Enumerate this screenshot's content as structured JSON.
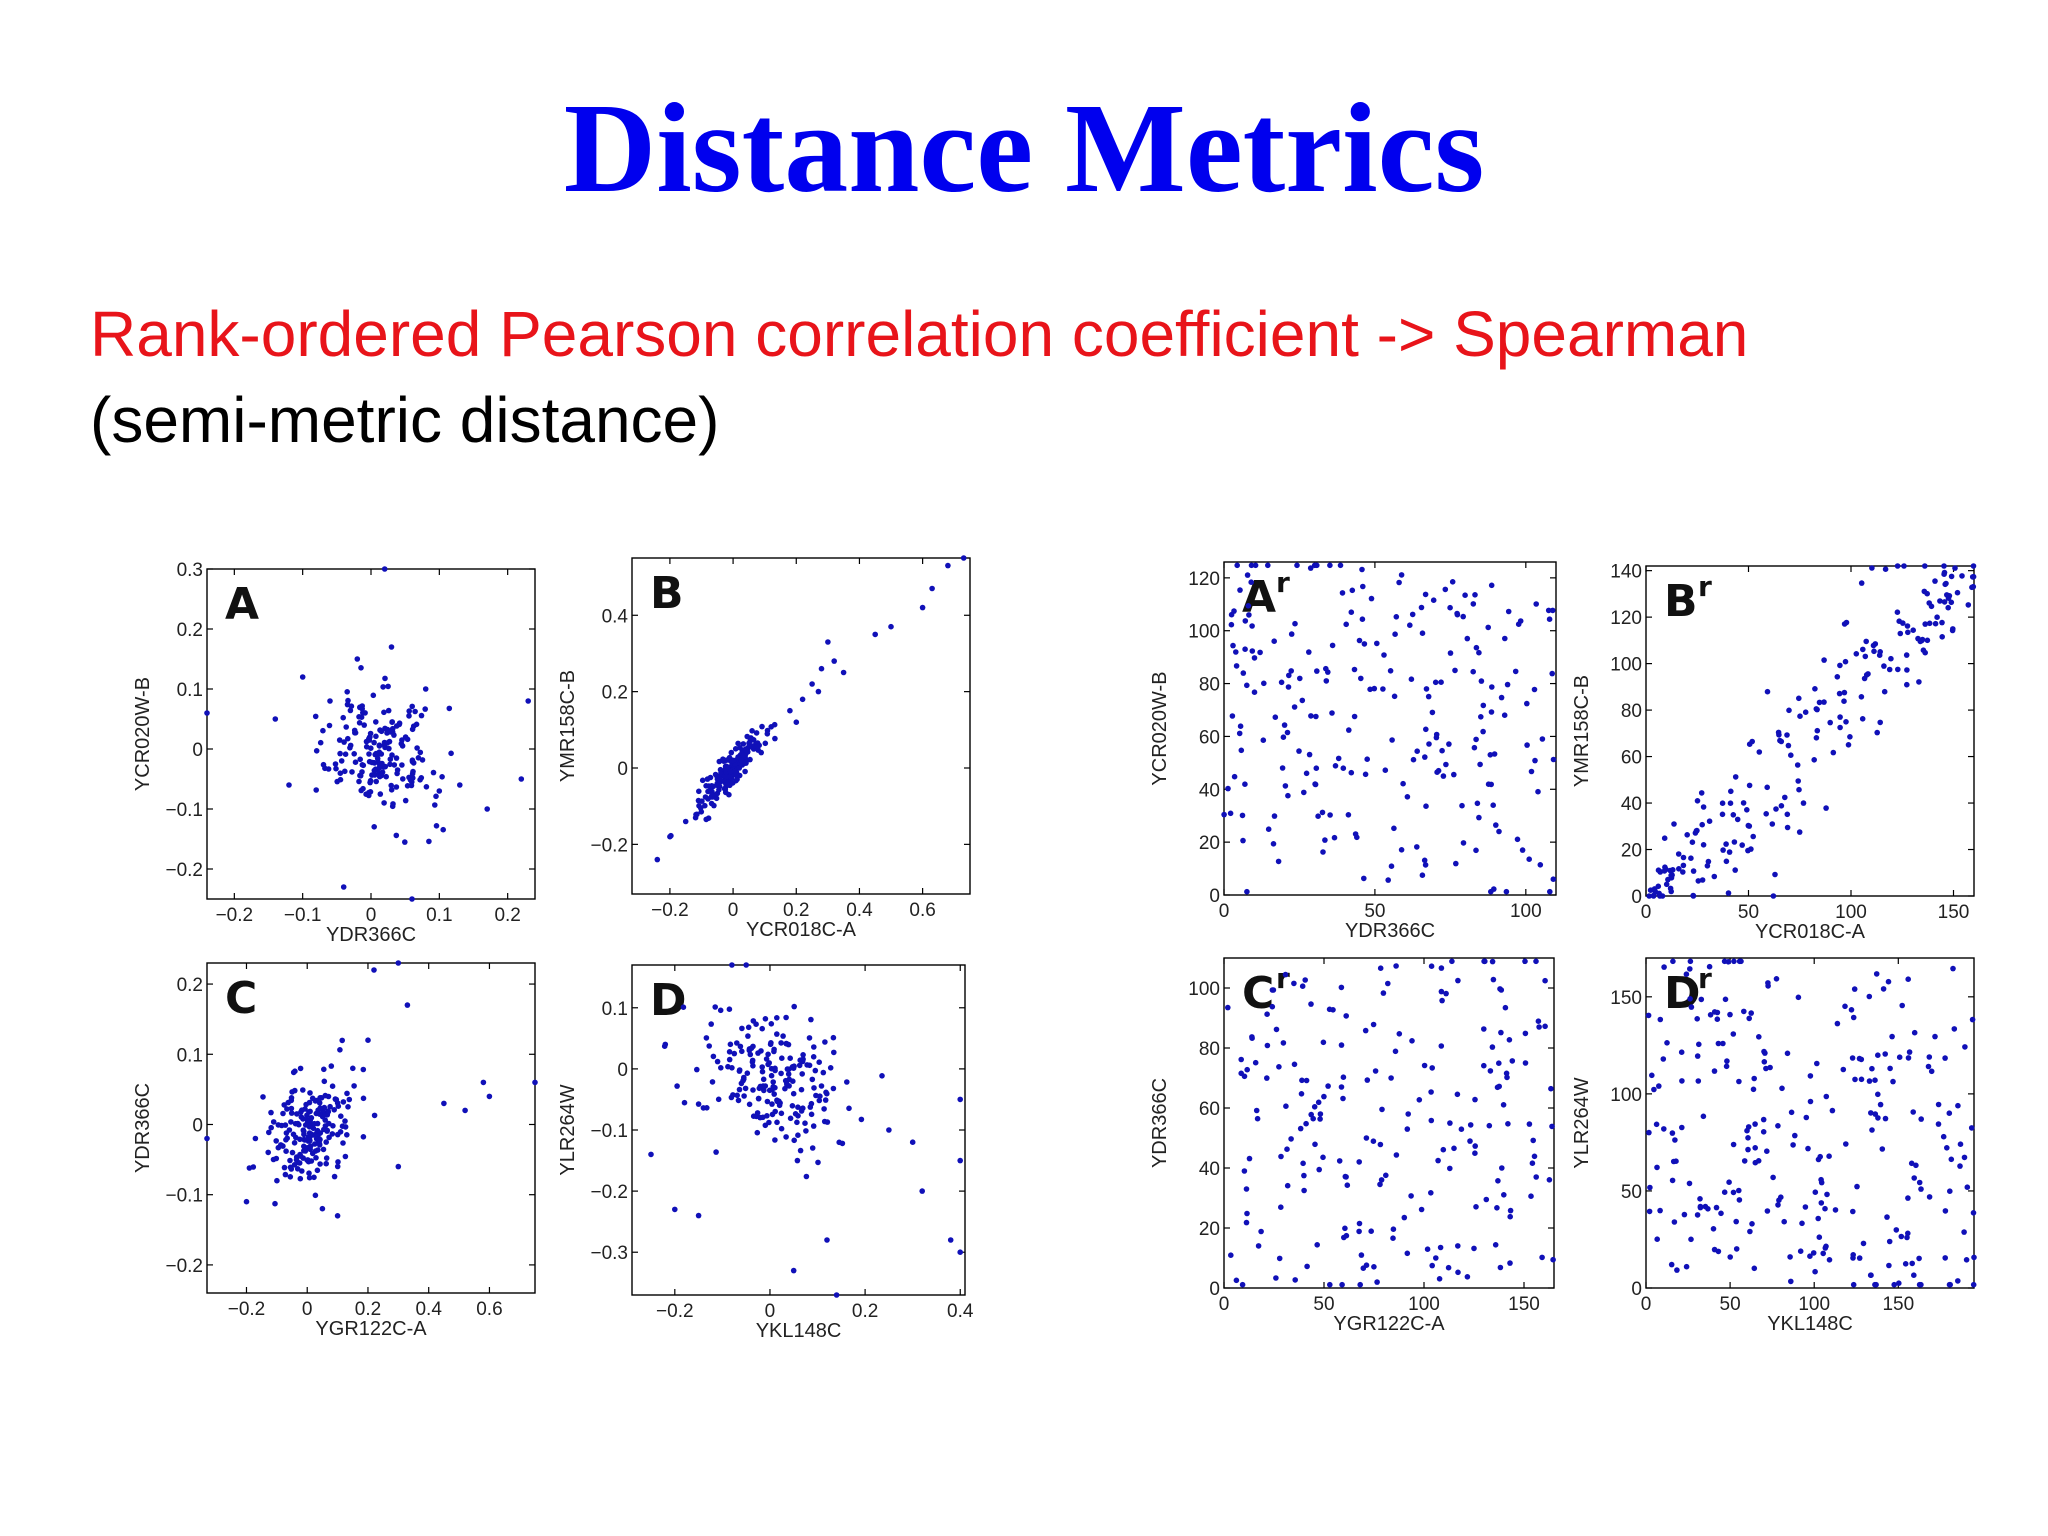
{
  "slide": {
    "title": "Distance Metrics",
    "subtitle_line1": "Rank-ordered Pearson correlation coefficient -> Spearman",
    "subtitle_line2": "(semi-metric distance)"
  },
  "colors": {
    "title": "#0000ee",
    "subtitle_red": "#e8141a",
    "points": "#1010b8"
  },
  "chart_data": [
    {
      "type": "scatter",
      "panel": "A",
      "sup": "",
      "xlabel": "YDR366C",
      "ylabel": "YCR020W-B",
      "xlim": [
        -0.24,
        0.24
      ],
      "ylim": [
        -0.25,
        0.3
      ],
      "xticks": [
        -0.2,
        -0.1,
        0,
        0.1,
        0.2
      ],
      "yticks": [
        -0.2,
        -0.1,
        0,
        0.1,
        0.2,
        0.3
      ],
      "xtick_labels": [
        "−0.2",
        "−0.1",
        "0",
        "0.1",
        "0.2"
      ],
      "ytick_labels": [
        "−0.2",
        "−0.1",
        "0",
        "0.1",
        "0.2",
        "0.3"
      ],
      "points": [
        [
          0.02,
          0.3
        ],
        [
          -0.24,
          0.06
        ],
        [
          0.23,
          0.08
        ],
        [
          0.22,
          -0.05
        ],
        [
          0.17,
          -0.1
        ],
        [
          -0.04,
          -0.23
        ],
        [
          0.06,
          -0.25
        ],
        [
          0.13,
          -0.06
        ],
        [
          -0.14,
          0.05
        ],
        [
          -0.1,
          0.12
        ],
        [
          0.1,
          -0.07
        ],
        [
          -0.12,
          -0.06
        ],
        [
          0.03,
          0.17
        ],
        [
          -0.02,
          0.15
        ],
        [
          0.08,
          0.1
        ],
        [
          -0.06,
          0.08
        ]
      ],
      "cluster": {
        "cx": 0.01,
        "cy": -0.01,
        "sx": 0.04,
        "sy": 0.05,
        "rho": -0.2,
        "n": 190
      }
    },
    {
      "type": "scatter",
      "panel": "B",
      "sup": "",
      "xlabel": "YCR018C-A",
      "ylabel": "YMR158C-B",
      "xlim": [
        -0.32,
        0.75
      ],
      "ylim": [
        -0.33,
        0.55
      ],
      "xticks": [
        -0.2,
        0,
        0.2,
        0.4,
        0.6
      ],
      "yticks": [
        -0.2,
        0,
        0.2,
        0.4
      ],
      "xtick_labels": [
        "−0.2",
        "0",
        "0.2",
        "0.4",
        "0.6"
      ],
      "ytick_labels": [
        "−0.2",
        "0",
        "0.2",
        "0.4"
      ],
      "points": [
        [
          0.73,
          0.55
        ],
        [
          0.68,
          0.53
        ],
        [
          0.63,
          0.47
        ],
        [
          0.6,
          0.42
        ],
        [
          0.5,
          0.37
        ],
        [
          0.45,
          0.35
        ],
        [
          0.3,
          0.33
        ],
        [
          0.32,
          0.28
        ],
        [
          0.28,
          0.26
        ],
        [
          0.25,
          0.22
        ],
        [
          0.22,
          0.18
        ],
        [
          0.18,
          0.15
        ],
        [
          -0.33,
          -0.33
        ],
        [
          -0.24,
          -0.24
        ],
        [
          -0.2,
          -0.18
        ],
        [
          -0.15,
          -0.14
        ],
        [
          0.35,
          0.25
        ],
        [
          0.27,
          0.2
        ],
        [
          0.2,
          0.12
        ]
      ],
      "cluster": {
        "cx": 0.0,
        "cy": 0.0,
        "sx": 0.06,
        "sy": 0.06,
        "rho": 0.92,
        "n": 180
      }
    },
    {
      "type": "scatter",
      "panel": "C",
      "sup": "",
      "xlabel": "YGR122C-A",
      "ylabel": "YDR366C",
      "xlim": [
        -0.33,
        0.75
      ],
      "ylim": [
        -0.24,
        0.23
      ],
      "xticks": [
        -0.2,
        0,
        0.2,
        0.4,
        0.6
      ],
      "yticks": [
        -0.2,
        -0.1,
        0,
        0.1,
        0.2
      ],
      "xtick_labels": [
        "−0.2",
        "0",
        "0.2",
        "0.4",
        "0.6"
      ],
      "ytick_labels": [
        "−0.2",
        "−0.1",
        "0",
        "0.1",
        "0.2"
      ],
      "points": [
        [
          0.22,
          0.22
        ],
        [
          0.3,
          0.23
        ],
        [
          0.33,
          0.17
        ],
        [
          0.75,
          0.06
        ],
        [
          0.58,
          0.06
        ],
        [
          0.6,
          0.04
        ],
        [
          0.45,
          0.03
        ],
        [
          0.52,
          0.02
        ],
        [
          -0.33,
          -0.02
        ],
        [
          -0.2,
          -0.11
        ],
        [
          0.05,
          -0.12
        ],
        [
          0.1,
          -0.13
        ],
        [
          0.2,
          0.12
        ],
        [
          0.15,
          0.08
        ],
        [
          0.3,
          -0.06
        ],
        [
          -0.1,
          -0.08
        ]
      ],
      "cluster": {
        "cx": 0.02,
        "cy": 0.0,
        "sx": 0.07,
        "sy": 0.04,
        "rho": 0.2,
        "n": 200
      }
    },
    {
      "type": "scatter",
      "panel": "D",
      "sup": "",
      "xlabel": "YKL148C",
      "ylabel": "YLR264W",
      "xlim": [
        -0.29,
        0.41
      ],
      "ylim": [
        -0.37,
        0.17
      ],
      "xticks": [
        -0.2,
        0,
        0.2,
        0.4
      ],
      "yticks": [
        -0.3,
        -0.2,
        -0.1,
        0,
        0.1
      ],
      "xtick_labels": [
        "−0.2",
        "0",
        "0.2",
        "0.4"
      ],
      "ytick_labels": [
        "−0.3",
        "−0.2",
        "−0.1",
        "0",
        "0.1"
      ],
      "points": [
        [
          -0.08,
          0.17
        ],
        [
          -0.05,
          0.17
        ],
        [
          0.4,
          -0.05
        ],
        [
          0.4,
          -0.15
        ],
        [
          0.4,
          -0.3
        ],
        [
          0.38,
          -0.28
        ],
        [
          0.32,
          -0.2
        ],
        [
          0.14,
          -0.37
        ],
        [
          0.05,
          -0.33
        ],
        [
          -0.2,
          -0.23
        ],
        [
          -0.15,
          -0.24
        ],
        [
          -0.25,
          -0.14
        ],
        [
          0.3,
          -0.12
        ],
        [
          0.25,
          -0.1
        ],
        [
          -0.22,
          0.04
        ],
        [
          0.12,
          -0.28
        ]
      ],
      "cluster": {
        "cx": 0.0,
        "cy": -0.02,
        "sx": 0.08,
        "sy": 0.06,
        "rho": -0.3,
        "n": 200
      }
    },
    {
      "type": "scatter",
      "panel": "A",
      "sup": "r",
      "xlabel": "YDR366C",
      "ylabel": "YCR020W-B",
      "xlim": [
        0,
        110
      ],
      "ylim": [
        0,
        126
      ],
      "xticks": [
        0,
        50,
        100
      ],
      "yticks": [
        0,
        20,
        40,
        60,
        80,
        100,
        120
      ],
      "xtick_labels": [
        "0",
        "50",
        "100"
      ],
      "ytick_labels": [
        "0",
        "20",
        "40",
        "60",
        "80",
        "100",
        "120"
      ],
      "points": [],
      "uniform": {
        "n": 230,
        "seed": 11,
        "slope": -0.35
      }
    },
    {
      "type": "scatter",
      "panel": "B",
      "sup": "r",
      "xlabel": "YCR018C-A",
      "ylabel": "YMR158C-B",
      "xlim": [
        0,
        160
      ],
      "ylim": [
        0,
        142
      ],
      "xticks": [
        0,
        50,
        100,
        150
      ],
      "yticks": [
        0,
        20,
        40,
        60,
        80,
        100,
        120,
        140
      ],
      "xtick_labels": [
        "0",
        "50",
        "100",
        "150"
      ],
      "ytick_labels": [
        "0",
        "20",
        "40",
        "60",
        "80",
        "100",
        "120",
        "140"
      ],
      "points": [],
      "diagonal": {
        "n": 210,
        "seed": 23,
        "spread": 14
      }
    },
    {
      "type": "scatter",
      "panel": "C",
      "sup": "r",
      "xlabel": "YGR122C-A",
      "ylabel": "YDR366C",
      "xlim": [
        0,
        165
      ],
      "ylim": [
        0,
        110
      ],
      "xticks": [
        0,
        50,
        100,
        150
      ],
      "yticks": [
        0,
        20,
        40,
        60,
        80,
        100
      ],
      "xtick_labels": [
        "0",
        "50",
        "100",
        "150"
      ],
      "ytick_labels": [
        "0",
        "20",
        "40",
        "60",
        "80",
        "100"
      ],
      "points": [],
      "uniform": {
        "n": 210,
        "seed": 37,
        "slope": 0.15
      }
    },
    {
      "type": "scatter",
      "panel": "D",
      "sup": "r",
      "xlabel": "YKL148C",
      "ylabel": "YLR264W",
      "xlim": [
        0,
        195
      ],
      "ylim": [
        0,
        170
      ],
      "xticks": [
        0,
        50,
        100,
        150
      ],
      "yticks": [
        0,
        50,
        100,
        150
      ],
      "xtick_labels": [
        "0",
        "50",
        "100",
        "150"
      ],
      "ytick_labels": [
        "0",
        "50",
        "100",
        "150"
      ],
      "points": [],
      "uniform": {
        "n": 260,
        "seed": 53,
        "slope": -0.3
      }
    }
  ]
}
